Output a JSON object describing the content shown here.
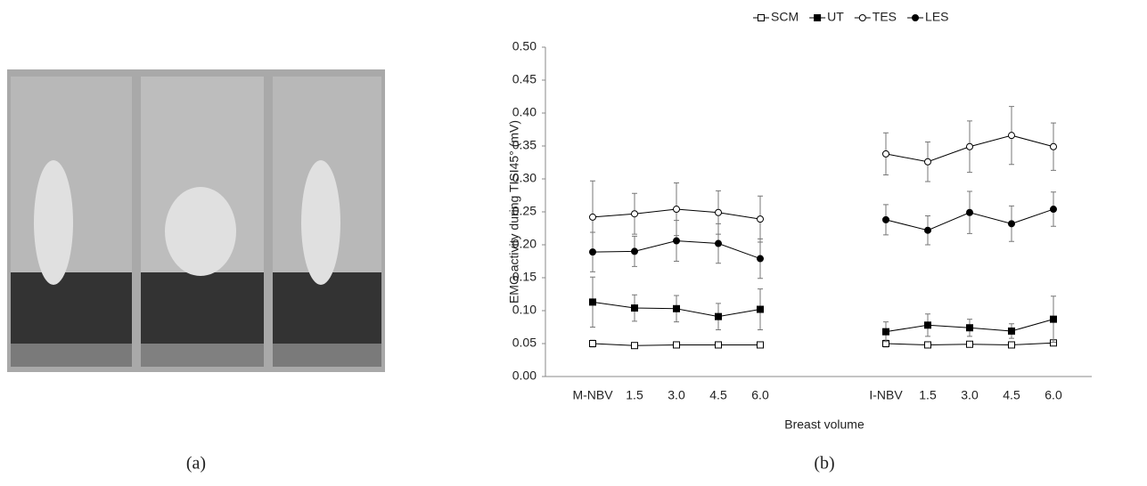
{
  "panel_a": {
    "label": "(a)"
  },
  "chart_data": {
    "type": "line",
    "label": "(b)",
    "categories": [
      "M-NBV",
      "1.5",
      "3.0",
      "4.5",
      "6.0",
      null,
      null,
      "I-NBV",
      "1.5",
      "3.0",
      "4.5",
      "6.0"
    ],
    "x_label": "Breast volume",
    "y_label": "EMG activity during TISI45° (mV)",
    "ylim": [
      0,
      0.5
    ],
    "yticks": [
      {
        "value": 0,
        "label": "0.00"
      },
      {
        "value": 0.05,
        "label": "0.05"
      },
      {
        "value": 0.1,
        "label": "0.10"
      },
      {
        "value": 0.15,
        "label": "0.15"
      },
      {
        "value": 0.2,
        "label": "0.20"
      },
      {
        "value": 0.25,
        "label": "0.25"
      },
      {
        "value": 0.3,
        "label": "0.30"
      },
      {
        "value": 0.35,
        "label": "0.35"
      },
      {
        "value": 0.4,
        "label": "0.40"
      },
      {
        "value": 0.45,
        "label": "0.45"
      },
      {
        "value": 0.5,
        "label": "0.50"
      }
    ],
    "grid": false,
    "legend": "top",
    "series": [
      {
        "name": "SCM",
        "color": "#000000",
        "marker": "square",
        "filled": false,
        "values": [
          0.05,
          0.047,
          0.048,
          0.048,
          0.048,
          null,
          null,
          0.05,
          0.048,
          0.049,
          0.048,
          0.051
        ],
        "errors": [
          0.005,
          0.002,
          0.002,
          0.002,
          0.003,
          null,
          null,
          0.005,
          0.002,
          0.003,
          0.002,
          0.004
        ]
      },
      {
        "name": "UT",
        "color": "#000000",
        "marker": "square",
        "filled": true,
        "values": [
          0.113,
          0.104,
          0.103,
          0.091,
          0.102,
          null,
          null,
          0.068,
          0.078,
          0.074,
          0.069,
          0.087
        ],
        "errors": [
          0.038,
          0.02,
          0.02,
          0.02,
          0.031,
          null,
          null,
          0.015,
          0.017,
          0.013,
          0.011,
          0.035
        ]
      },
      {
        "name": "TES",
        "color": "#000000",
        "marker": "circle",
        "filled": false,
        "values": [
          0.242,
          0.247,
          0.254,
          0.249,
          0.239,
          null,
          null,
          0.338,
          0.326,
          0.349,
          0.366,
          0.349
        ],
        "errors": [
          0.055,
          0.031,
          0.04,
          0.033,
          0.035,
          null,
          null,
          0.032,
          0.03,
          0.039,
          0.044,
          0.036
        ]
      },
      {
        "name": "LES",
        "color": "#000000",
        "marker": "circle",
        "filled": true,
        "values": [
          0.189,
          0.19,
          0.206,
          0.202,
          0.179,
          null,
          null,
          0.238,
          0.222,
          0.249,
          0.232,
          0.254
        ],
        "errors": [
          0.03,
          0.023,
          0.031,
          0.03,
          0.03,
          null,
          null,
          0.023,
          0.022,
          0.032,
          0.027,
          0.026
        ]
      }
    ]
  }
}
